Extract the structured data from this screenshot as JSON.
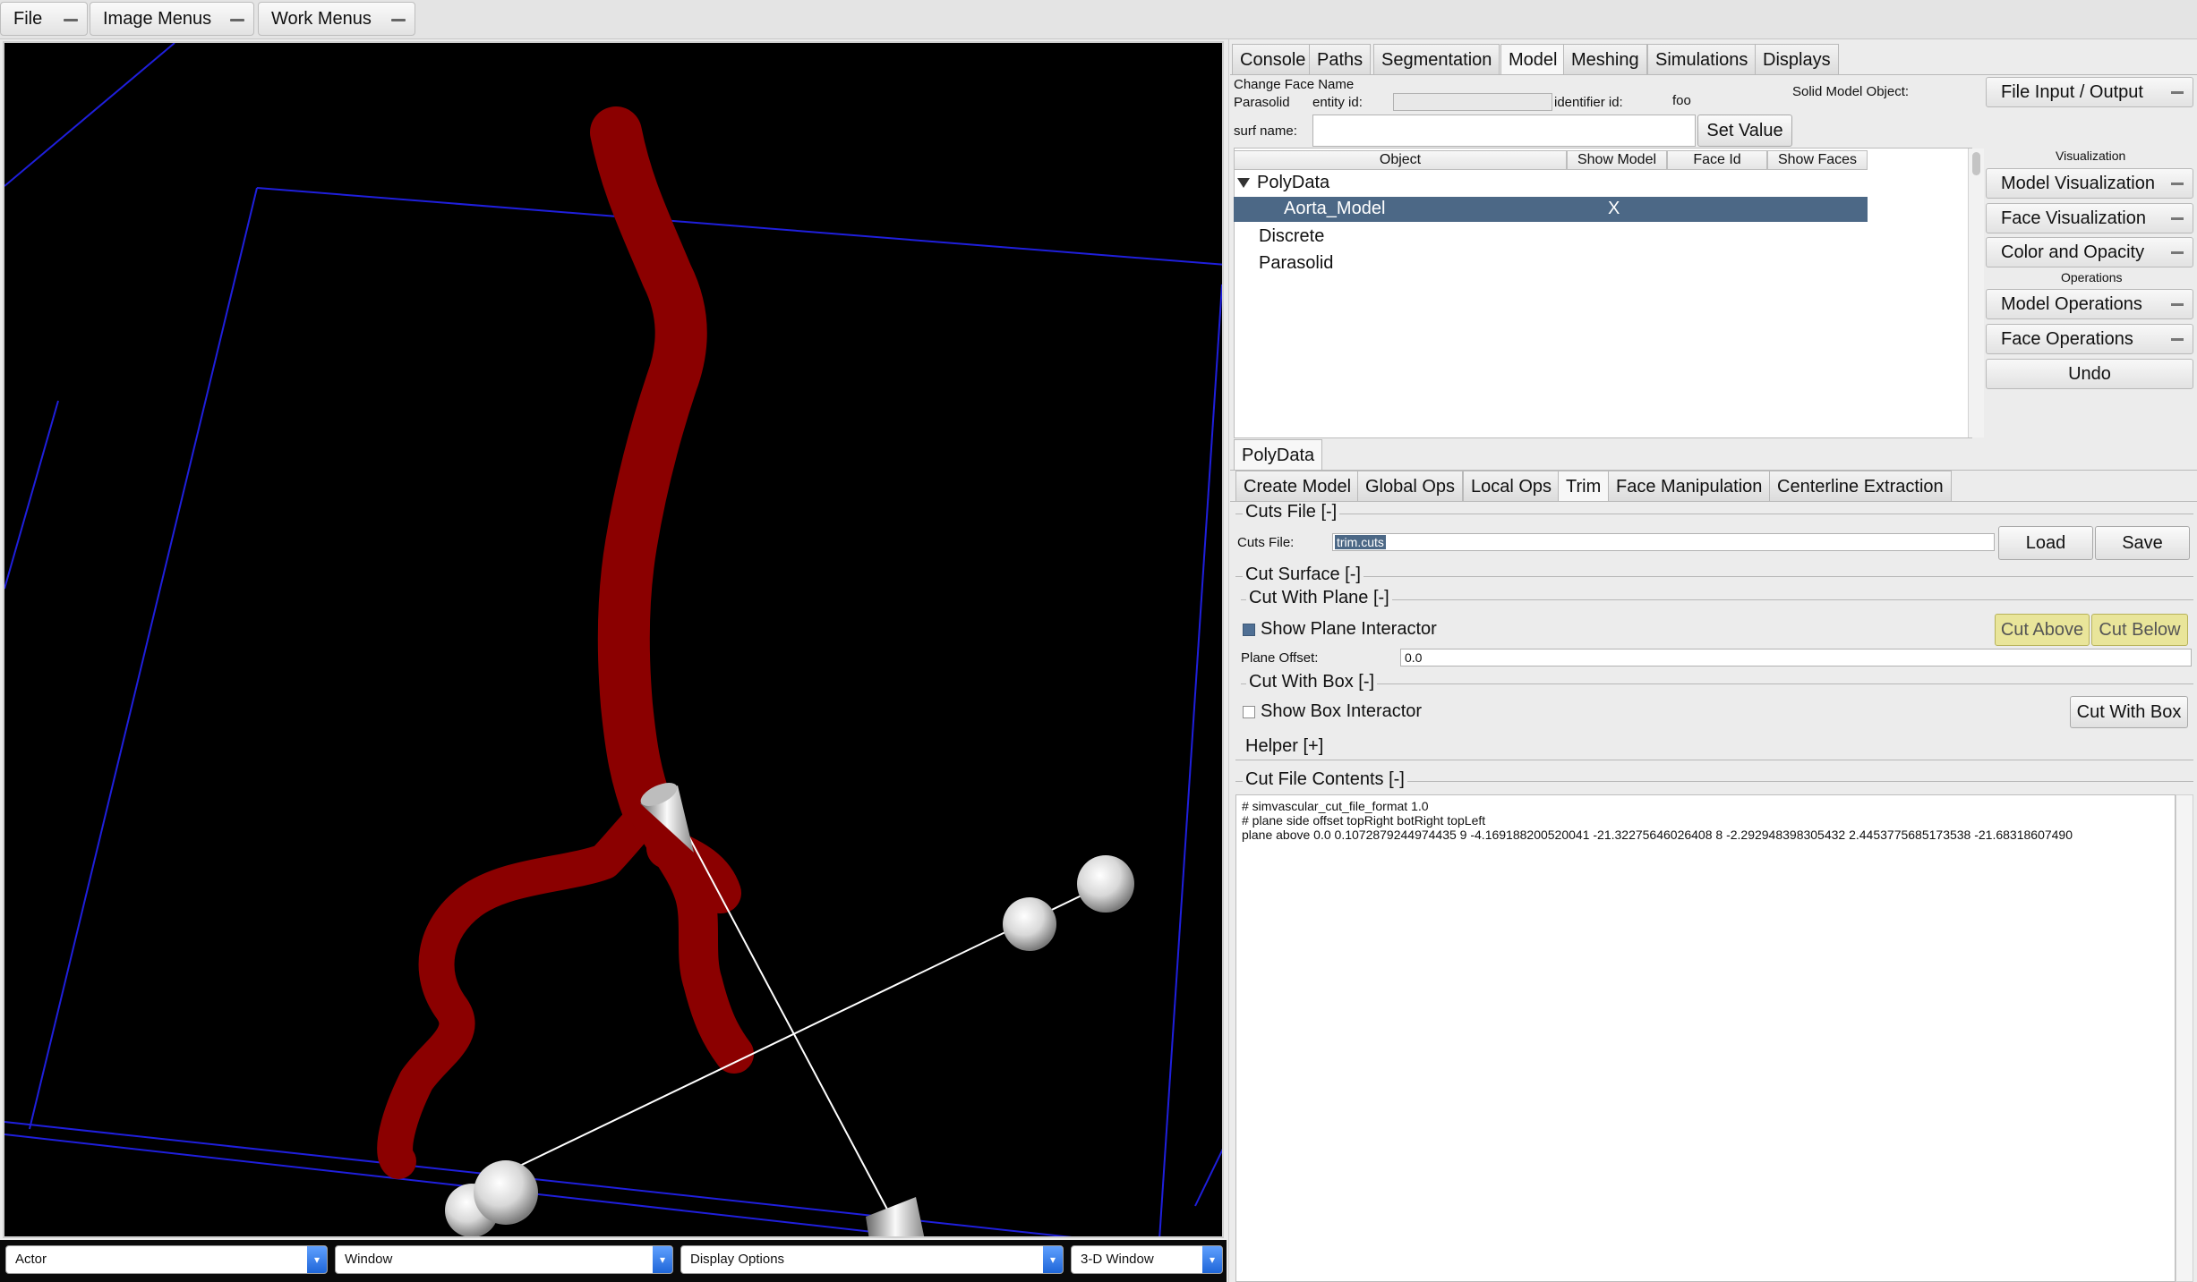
{
  "menubar": {
    "file": "File",
    "image_menus": "Image Menus",
    "work_menus": "Work Menus"
  },
  "viewport": {
    "background": "#000000",
    "vessel_color": "#8b0000",
    "box_line_color": "#1f1fdc"
  },
  "bottom_selects": {
    "actor": "Actor",
    "window": "Window",
    "display_options": "Display Options",
    "view": "3-D Window"
  },
  "main_tabs": [
    "Console",
    "Paths",
    "Segmentation",
    "Model",
    "Meshing",
    "Simulations",
    "Displays"
  ],
  "model_header": {
    "change_face_name": "Change Face Name",
    "parasolid": "Parasolid",
    "entity_id_label": "entity id:",
    "identifier_id_label": "identifier id:",
    "identifier_id_value": "foo",
    "solid_model_object": "Solid Model Object:",
    "surf_name_label": "surf name:",
    "set_value": "Set Value"
  },
  "tree": {
    "columns": [
      "Object",
      "Show Model",
      "Face Id",
      "Show Faces"
    ],
    "rows": {
      "polydata": "PolyData",
      "aorta_model": "Aorta_Model",
      "aorta_show_model": "X",
      "discrete": "Discrete",
      "parasolid": "Parasolid"
    }
  },
  "side_panel": {
    "file_io": "File Input / Output",
    "visualization_header": "Visualization",
    "model_visualization": "Model Visualization",
    "face_visualization": "Face Visualization",
    "color_opacity": "Color and Opacity",
    "operations_header": "Operations",
    "model_operations": "Model Operations",
    "face_operations": "Face Operations",
    "undo": "Undo"
  },
  "polydata_tab": "PolyData",
  "sub_tabs": [
    "Create Model",
    "Global Ops",
    "Local Ops",
    "Trim",
    "Face Manipulation",
    "Centerline Extraction"
  ],
  "trim": {
    "cuts_file_section": "Cuts File [-]",
    "cuts_file_label": "Cuts File:",
    "cuts_file_value": "trim.cuts",
    "load": "Load",
    "save": "Save",
    "cut_surface_section": "Cut Surface [-]",
    "cut_with_plane_section": "Cut With Plane [-]",
    "show_plane_interactor": "Show Plane Interactor",
    "show_plane_checked": true,
    "cut_above": "Cut Above",
    "cut_below": "Cut Below",
    "plane_offset_label": "Plane Offset:",
    "plane_offset_value": "0.0",
    "cut_with_box_section": "Cut With Box [-]",
    "show_box_interactor": "Show Box Interactor",
    "show_box_checked": false,
    "cut_with_box": "Cut With Box",
    "helper_section": "Helper [+]",
    "cut_file_contents_section": "Cut File Contents [-]",
    "contents": [
      "# simvascular_cut_file_format 1.0",
      "# plane side offset topRight botRight topLeft",
      "plane above 0.0  0.1072879244974435 9 -4.169188200520041 -21.32275646026408 8  -2.292948398305432 2.4453775685173538 -21.68318607490"
    ]
  }
}
